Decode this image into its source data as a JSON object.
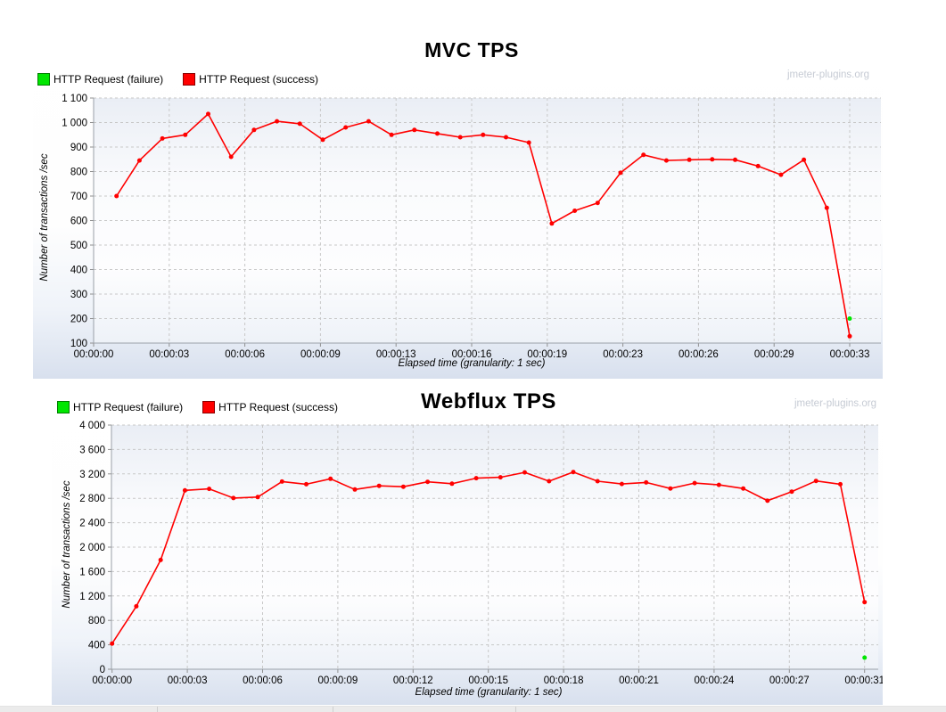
{
  "page": {
    "background": "#ffffff"
  },
  "chart_data": [
    {
      "type": "line",
      "title": "MVC TPS",
      "watermark": "jmeter-plugins.org",
      "xlabel": "Elapsed time (granularity: 1 sec)",
      "ylabel": "Number of transactions /sec",
      "ylim": [
        100,
        1100
      ],
      "ytick_labels": [
        "1 100",
        "1 000",
        "900",
        "800",
        "700",
        "600",
        "500",
        "400",
        "300",
        "200",
        "100"
      ],
      "xtick_labels": [
        "00:00:00",
        "00:00:03",
        "00:00:06",
        "00:00:09",
        "00:00:13",
        "00:00:16",
        "00:00:19",
        "00:00:23",
        "00:00:26",
        "00:00:29",
        "00:00:33"
      ],
      "x_total_seconds": 33,
      "grid": true,
      "legend_position": "top-left",
      "legend": [
        {
          "label": "HTTP Request (failure)",
          "color": "#00e600"
        },
        {
          "label": "HTTP Request (success)",
          "color": "#ff0000"
        }
      ],
      "series": [
        {
          "name": "HTTP Request (success)",
          "color": "#ff0000",
          "start_sec": 1,
          "step_sec": 1,
          "values": [
            700,
            845,
            935,
            950,
            1035,
            860,
            970,
            1005,
            995,
            930,
            980,
            1005,
            950,
            970,
            955,
            940,
            950,
            940,
            918,
            588,
            640,
            672,
            795,
            868,
            845,
            848,
            850,
            848,
            822,
            787,
            848,
            652,
            128
          ]
        },
        {
          "name": "HTTP Request (failure)",
          "color": "#00e600",
          "points": [
            {
              "sec": 33,
              "value": 200
            }
          ]
        }
      ]
    },
    {
      "type": "line",
      "title": "Webflux TPS",
      "watermark": "jmeter-plugins.org",
      "xlabel": "Elapsed time (granularity: 1 sec)",
      "ylabel": "Number of transactions /sec",
      "ylim": [
        0,
        4000
      ],
      "ytick_labels": [
        "4 000",
        "3 600",
        "3 200",
        "2 800",
        "2 400",
        "2 000",
        "1 600",
        "1 200",
        "800",
        "400",
        "0"
      ],
      "xtick_labels": [
        "00:00:00",
        "00:00:03",
        "00:00:06",
        "00:00:09",
        "00:00:12",
        "00:00:15",
        "00:00:18",
        "00:00:21",
        "00:00:24",
        "00:00:27",
        "00:00:31"
      ],
      "x_total_seconds": 31,
      "grid": true,
      "legend_position": "top-left",
      "legend": [
        {
          "label": "HTTP Request (failure)",
          "color": "#00e600"
        },
        {
          "label": "HTTP Request (success)",
          "color": "#ff0000"
        }
      ],
      "series": [
        {
          "name": "HTTP Request (success)",
          "color": "#ff0000",
          "start_sec": 0,
          "step_sec": 1,
          "values": [
            420,
            1030,
            1790,
            2930,
            2955,
            2805,
            2820,
            3075,
            3030,
            3120,
            2945,
            3005,
            2990,
            3070,
            3040,
            3130,
            3145,
            3225,
            3080,
            3230,
            3080,
            3035,
            3060,
            2960,
            3050,
            3020,
            2960,
            2760,
            2910,
            3085,
            3030,
            1100
          ]
        },
        {
          "name": "HTTP Request (failure)",
          "color": "#00e600",
          "points": [
            {
              "sec": 31,
              "value": 190
            }
          ]
        }
      ]
    }
  ]
}
